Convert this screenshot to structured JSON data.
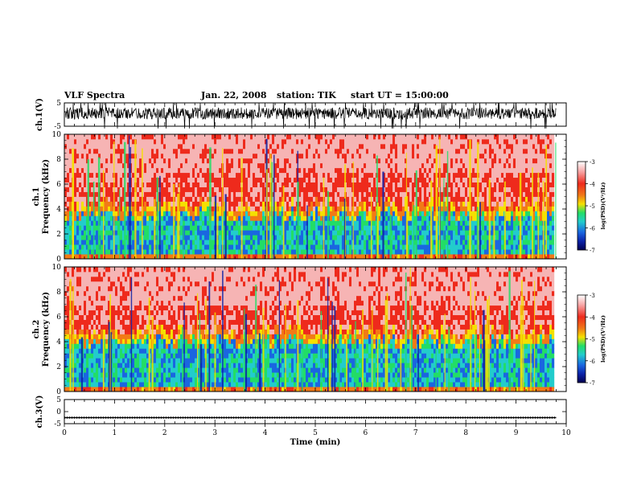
{
  "header": {
    "title": "VLF Spectra",
    "date": "Jan. 22, 2008",
    "station": "station: TIK",
    "start": "start UT = 15:00:00"
  },
  "chart_data": [
    {
      "type": "line",
      "panel": "ch.1 waveform",
      "ylabel": "ch.1(V)",
      "ylim": [
        -5,
        5
      ],
      "yticks": [
        5,
        -5
      ],
      "xlim": [
        0,
        10
      ],
      "series": [
        {
          "values_description_none": true,
          "baseline": 0.5,
          "amplitude": 2.5,
          "clipped_at": -5
        }
      ]
    },
    {
      "type": "heatmap",
      "panel": "ch.1 spectrogram",
      "ylabel": "ch.1\nFrequency (kHz)",
      "ylim": [
        0,
        10
      ],
      "yticks": [
        0,
        2,
        4,
        6,
        8,
        10
      ],
      "xlim": [
        0,
        10
      ],
      "data_extent_min": 9.8,
      "band_edge_khz": 3.5,
      "colorbar": {
        "label": "log(PSD)(V²/Hz)",
        "range": [
          -7,
          -3
        ],
        "ticks": [
          "-3",
          "-4",
          "-5",
          "-6",
          "-7"
        ]
      }
    },
    {
      "type": "heatmap",
      "panel": "ch.2 spectrogram",
      "ylabel": "ch.2\nFrequency (kHz)",
      "ylim": [
        0,
        10
      ],
      "yticks": [
        0,
        2,
        4,
        6,
        8,
        10
      ],
      "xlim": [
        0,
        10
      ],
      "data_extent_min": 9.8,
      "band_edge_khz": 4.0,
      "colorbar": {
        "label": "log(PSD)(V²/Hz)",
        "range": [
          -7,
          -3
        ],
        "ticks": [
          "-3",
          "-4",
          "-5",
          "-6",
          "-7"
        ]
      }
    },
    {
      "type": "line",
      "panel": "ch.3 waveform",
      "ylabel": "ch.3(V)",
      "ylim": [
        -5,
        5
      ],
      "yticks": [
        5,
        0,
        -5
      ],
      "xlim": [
        0,
        10
      ],
      "series": [
        {
          "constant_value": -2.5
        }
      ]
    }
  ],
  "xaxis": {
    "label": "Time (min)",
    "ticks": [
      "0",
      "1",
      "2",
      "3",
      "4",
      "5",
      "6",
      "7",
      "8",
      "9",
      "10"
    ]
  },
  "yticks": {
    "wave1": [
      "5",
      "-5"
    ],
    "freq": [
      "0",
      "2",
      "4",
      "6",
      "8",
      "10"
    ],
    "wave3": [
      "5",
      "0",
      "-5"
    ]
  },
  "colorbar_ticks": [
    "-3",
    "-4",
    "-5",
    "-6",
    "-7"
  ],
  "labels": {
    "ch1_wave": "ch.1(V)",
    "ch1_spec_a": "ch.1",
    "ch1_spec_b": "Frequency (kHz)",
    "ch2_spec_a": "ch.2",
    "ch2_spec_b": "Frequency (kHz)",
    "ch3_wave": "ch.3(V)",
    "cbar": "log(PSD)(V²/Hz)"
  },
  "colors": {
    "high": "#ee2a1c",
    "mid": "#f5e000",
    "low_green": "#22dd66",
    "low_cyan": "#22cccc",
    "low_blue": "#0b22a8",
    "trace": "#000000"
  }
}
